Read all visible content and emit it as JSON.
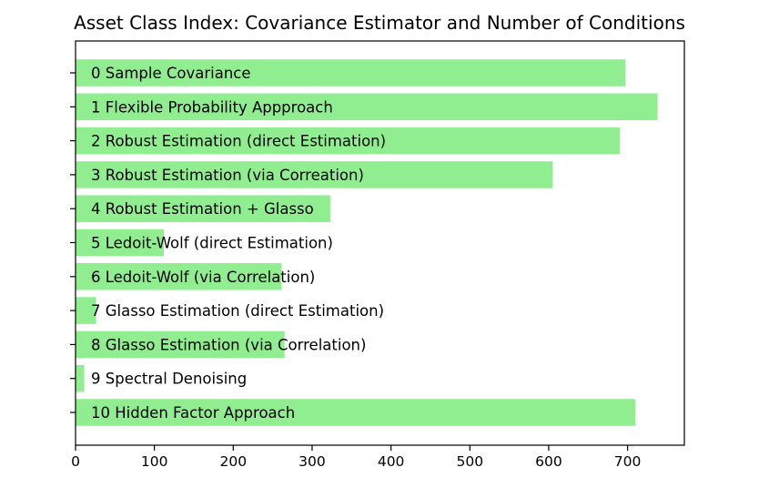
{
  "chart_data": {
    "type": "bar",
    "orientation": "horizontal",
    "title": "Asset Class Index: Covariance Estimator and Number of Conditions",
    "xlabel": "",
    "ylabel": "",
    "xlim": [
      0,
      772
    ],
    "x_ticks": [
      0,
      100,
      200,
      300,
      400,
      500,
      600,
      700
    ],
    "grid": false,
    "bar_color": "#90ee90",
    "categories": [
      "0 Sample Covariance",
      "1 Flexible Probability Appproach",
      "2 Robust Estimation (direct Estimation)",
      "3 Robust Estimation (via Correation)",
      "4 Robust Estimation + Glasso",
      "5 Ledoit-Wolf (direct Estimation)",
      "6 Ledoit-Wolf (via Correlation)",
      "7 Glasso Estimation (direct Estimation)",
      "8 Glasso Estimation (via Correlation)",
      "9 Spectral Denoising",
      "10 Hidden Factor Approach"
    ],
    "values": [
      697,
      738,
      690,
      605,
      323,
      112,
      261,
      26,
      265,
      11,
      710
    ]
  }
}
